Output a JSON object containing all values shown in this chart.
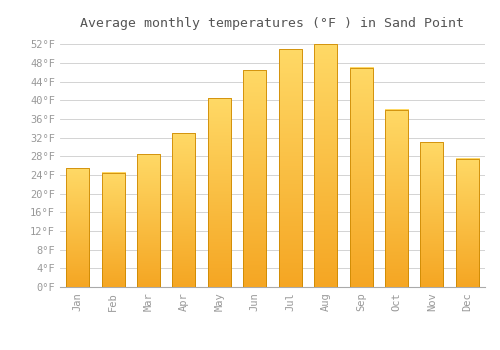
{
  "title": "Average monthly temperatures (°F ) in Sand Point",
  "months": [
    "Jan",
    "Feb",
    "Mar",
    "Apr",
    "May",
    "Jun",
    "Jul",
    "Aug",
    "Sep",
    "Oct",
    "Nov",
    "Dec"
  ],
  "values": [
    25.5,
    24.5,
    28.5,
    33.0,
    40.5,
    46.5,
    51.0,
    52.0,
    47.0,
    38.0,
    31.0,
    27.5
  ],
  "bar_color_bottom": "#F5A623",
  "bar_color_top": "#FFD966",
  "bar_edge_color": "#CC8800",
  "background_color": "#FFFFFF",
  "grid_color": "#CCCCCC",
  "ylim": [
    0,
    54
  ],
  "yticks": [
    0,
    4,
    8,
    12,
    16,
    20,
    24,
    28,
    32,
    36,
    40,
    44,
    48,
    52
  ],
  "ytick_labels": [
    "0°F",
    "4°F",
    "8°F",
    "12°F",
    "16°F",
    "20°F",
    "24°F",
    "28°F",
    "32°F",
    "36°F",
    "40°F",
    "44°F",
    "48°F",
    "52°F"
  ],
  "title_fontsize": 9.5,
  "tick_fontsize": 7.5,
  "font_family": "monospace",
  "tick_color": "#999999",
  "title_color": "#555555"
}
